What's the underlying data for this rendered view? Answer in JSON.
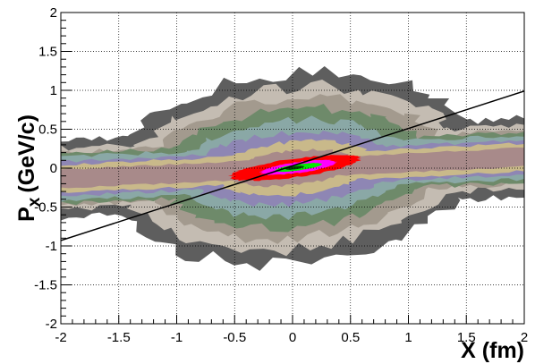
{
  "chart_data": {
    "type": "heatmap",
    "title": "",
    "xlabel": "X (fm)",
    "ylabel_main": "P",
    "ylabel_sub": "x",
    "ylabel_unit": "(GeV/c)",
    "xlim": [
      -2,
      2
    ],
    "ylim": [
      -2,
      2
    ],
    "grid": true,
    "x_ticks": [
      {
        "value": -2,
        "label": "-2"
      },
      {
        "value": -1.5,
        "label": "-1.5"
      },
      {
        "value": -1,
        "label": "-1"
      },
      {
        "value": -0.5,
        "label": "-0.5"
      },
      {
        "value": 0,
        "label": "0"
      },
      {
        "value": 0.5,
        "label": "0.5"
      },
      {
        "value": 1,
        "label": "1"
      },
      {
        "value": 1.5,
        "label": "1.5"
      },
      {
        "value": 2,
        "label": "2"
      }
    ],
    "y_ticks": [
      {
        "value": -2,
        "label": "-2"
      },
      {
        "value": -1.5,
        "label": "-1.5"
      },
      {
        "value": -1,
        "label": "-1"
      },
      {
        "value": -0.5,
        "label": "-0.5"
      },
      {
        "value": 0,
        "label": "0"
      },
      {
        "value": 0.5,
        "label": "0.5"
      },
      {
        "value": 1,
        "label": "1"
      },
      {
        "value": 1.5,
        "label": "1.5"
      },
      {
        "value": 2,
        "label": "2"
      }
    ],
    "levels": [
      {
        "color": "#5e5e5e",
        "x_center": 0,
        "x_width": 1.6,
        "y_width": 1.22,
        "y_slope": 0.1,
        "band_width": 0.5
      },
      {
        "color": "#c4bcb2",
        "x_center": 0,
        "x_width": 1.45,
        "y_width": 1.04,
        "y_slope": 0.1,
        "band_width": 0.4
      },
      {
        "color": "#a39a8e",
        "x_center": 0,
        "x_width": 1.3,
        "y_width": 0.9,
        "y_slope": 0.1,
        "band_width": 0.34
      },
      {
        "color": "#6e8a6a",
        "x_center": 0,
        "x_width": 1.15,
        "y_width": 0.76,
        "y_slope": 0.1,
        "band_width": 0.32
      },
      {
        "color": "#8aa8a6",
        "x_center": 0,
        "x_width": 1.0,
        "y_width": 0.62,
        "y_slope": 0.1,
        "band_width": 0.28
      },
      {
        "color": "#8e86b4",
        "x_center": 0,
        "x_width": 0.9,
        "y_width": 0.46,
        "y_slope": 0.1,
        "band_width": 0.22
      },
      {
        "color": "#c9b98a",
        "x_center": 0,
        "x_width": 0.7,
        "y_width": 0.34,
        "y_slope": 0.12,
        "band_width": 0.18
      },
      {
        "color": "#a88a8a",
        "x_center": 0,
        "x_width": 0.55,
        "y_width": 0.22,
        "y_slope": 0.15,
        "band_width": 0.12
      },
      {
        "color": "#ff0000",
        "x_center": 0.02,
        "x_width": 0.55,
        "y_width": 0.12,
        "y_slope": 0.2,
        "band_width": 0
      },
      {
        "color": "#ff00ff",
        "x_center": 0.05,
        "x_width": 0.32,
        "y_width": 0.07,
        "y_slope": 0.2,
        "band_width": 0
      },
      {
        "color": "#00ee00",
        "x_center": 0.05,
        "x_width": 0.2,
        "y_width": 0.04,
        "y_slope": 0.2,
        "band_width": 0
      },
      {
        "color": "#004400",
        "x_center": 0.02,
        "x_width": 0.08,
        "y_width": 0.02,
        "y_slope": 0.2,
        "band_width": 0
      }
    ],
    "fit_line": {
      "x": [
        -2,
        2
      ],
      "y": [
        -0.93,
        0.99
      ],
      "color": "#000000"
    }
  }
}
